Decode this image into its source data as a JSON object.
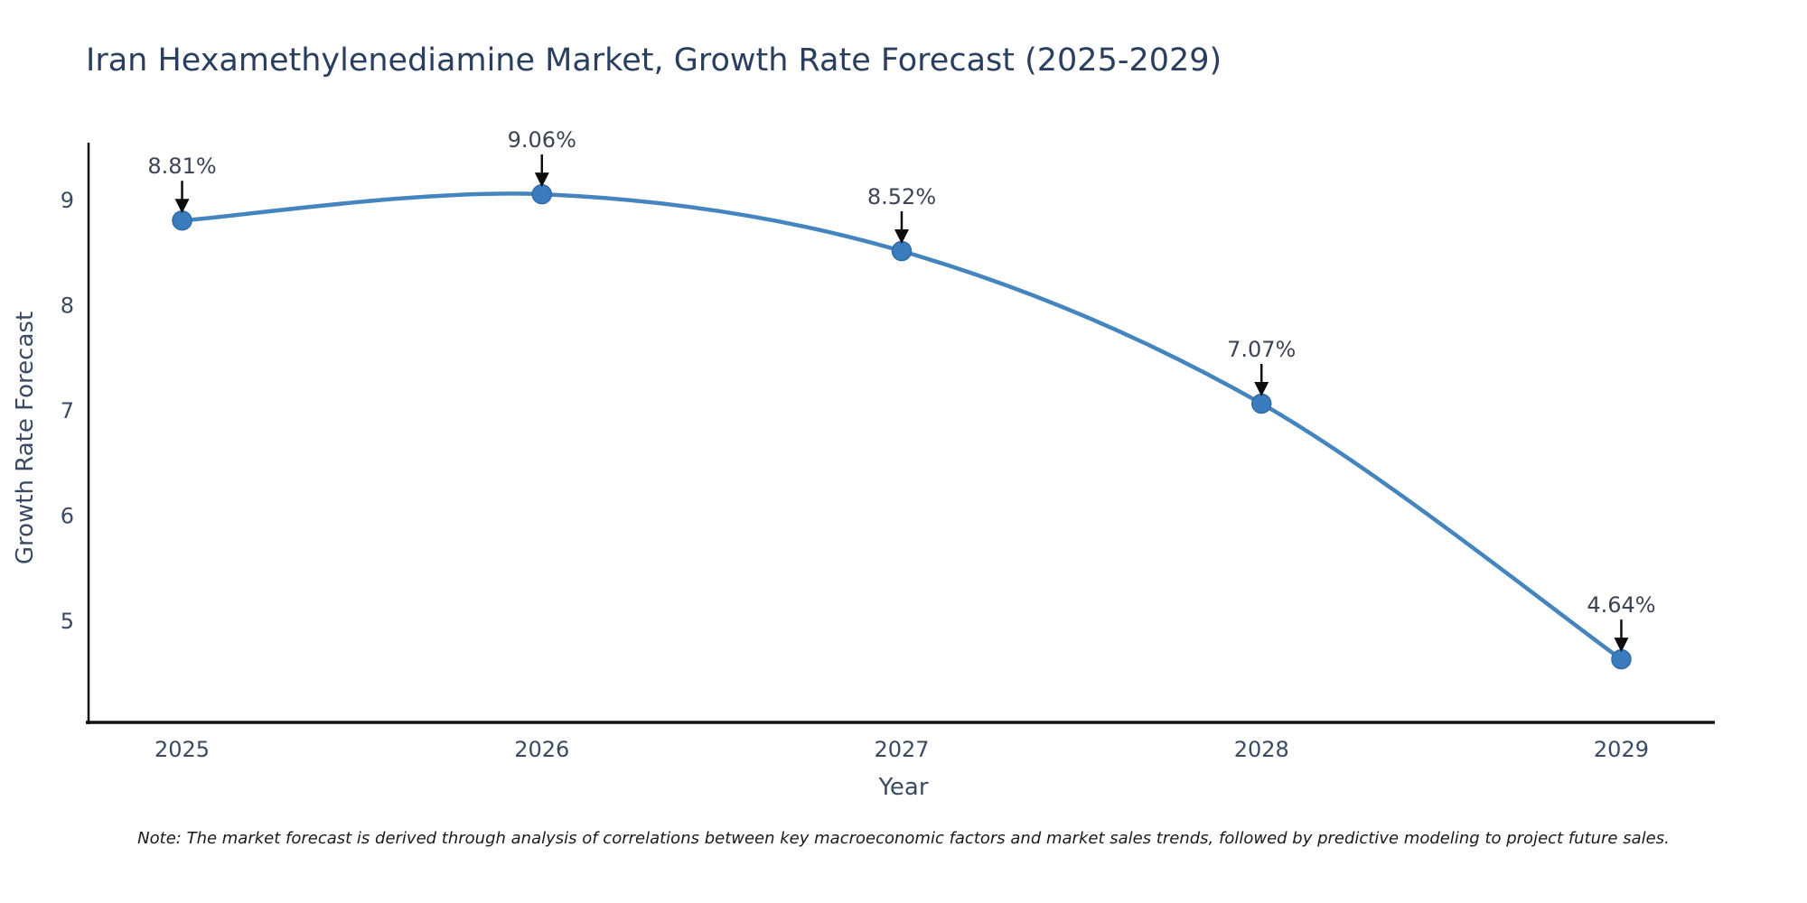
{
  "chart_data": {
    "type": "line",
    "title": "Iran Hexamethylenediamine Market, Growth Rate Forecast (2025-2029)",
    "xlabel": "Year",
    "ylabel": "Growth Rate Forecast",
    "categories": [
      2025,
      2026,
      2027,
      2028,
      2029
    ],
    "x_tick_labels": [
      "2025",
      "2026",
      "2027",
      "2028",
      "2029"
    ],
    "series": [
      {
        "name": "Growth Rate Forecast",
        "values": [
          8.81,
          9.06,
          8.52,
          7.07,
          4.64
        ],
        "point_labels": [
          "8.81%",
          "9.06%",
          "8.52%",
          "7.07%",
          "4.64%"
        ]
      }
    ],
    "y_ticks": [
      5,
      6,
      7,
      8,
      9
    ],
    "y_tick_labels": [
      "5",
      "6",
      "7",
      "8",
      "9"
    ],
    "xlim": [
      2024.74,
      2029.26
    ],
    "ylim": [
      4.04,
      9.55
    ],
    "grid": false,
    "legend_position": "none",
    "line_shape": "spline",
    "colors": {
      "line": "#4484bf",
      "marker": "#3a7cbe",
      "marker_edge": "#2f6ba8",
      "axis": "#111111",
      "arrow": "#0d0d0d",
      "background": "#ffffff"
    }
  },
  "footer": {
    "note": "Note: The market forecast is derived through analysis of correlations between key macroeconomic factors and market sales trends, followed by predictive modeling to project future sales."
  }
}
